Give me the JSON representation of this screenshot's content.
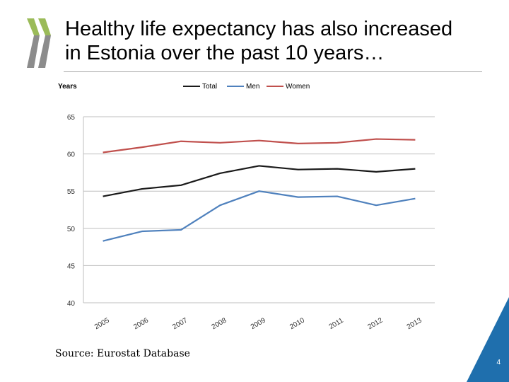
{
  "slide": {
    "title_lines": [
      "Healthy life expectancy has also increased",
      "in Estonia over the past 10 years…"
    ],
    "source": "Source: Eurostat Database",
    "page_number": "4",
    "colors": {
      "logo_green": "#9bbb59",
      "logo_gray": "#8c8c8c",
      "corner_blue": "#1f6fad"
    }
  },
  "chart_data": {
    "type": "line",
    "ylabel": "Years",
    "categories": [
      "2005",
      "2006",
      "2007",
      "2008",
      "2009",
      "2010",
      "2011",
      "2012",
      "2013"
    ],
    "ylim": [
      40,
      65
    ],
    "yticks": [
      40,
      45,
      50,
      55,
      60,
      65
    ],
    "grid": true,
    "legend_position": "top",
    "series": [
      {
        "name": "Total",
        "color": "#1a1a1a",
        "values": [
          54.3,
          55.3,
          55.8,
          57.4,
          58.4,
          57.9,
          58.0,
          57.6,
          58.0
        ]
      },
      {
        "name": "Men",
        "color": "#4f81bd",
        "values": [
          48.3,
          49.6,
          49.8,
          53.1,
          55.0,
          54.2,
          54.3,
          53.1,
          54.0
        ]
      },
      {
        "name": "Women",
        "color": "#c0504d",
        "values": [
          60.2,
          60.9,
          61.7,
          61.5,
          61.8,
          61.4,
          61.5,
          62.0,
          61.9
        ]
      }
    ]
  }
}
